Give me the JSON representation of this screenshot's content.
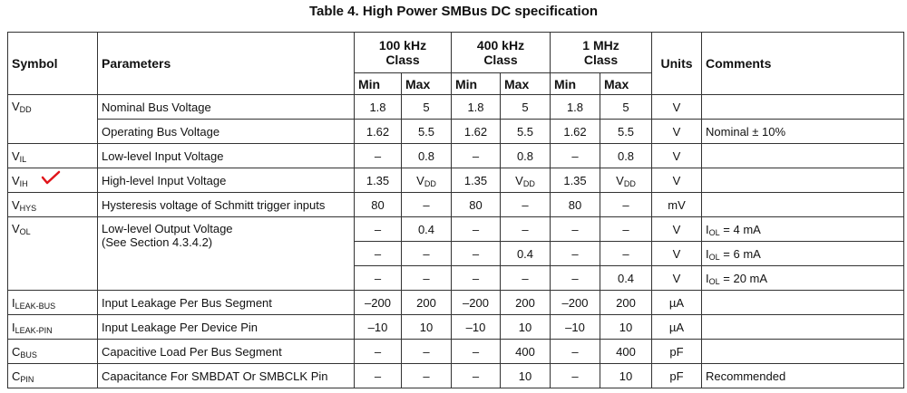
{
  "title": "Table 4. High Power SMBus DC specification",
  "header": {
    "symbol": "Symbol",
    "parameters": "Parameters",
    "classes": [
      [
        "100 kHz",
        "Class"
      ],
      [
        "400 kHz",
        "Class"
      ],
      [
        "1 MHz",
        "Class"
      ]
    ],
    "subheaders": [
      "Min",
      "Max",
      "Min",
      "Max",
      "Min",
      "Max"
    ],
    "units": "Units",
    "comments": "Comments"
  },
  "groups": [
    {
      "symbol": {
        "base": "V",
        "sub": "DD"
      },
      "params": [
        {
          "parameter": [
            "Nominal Bus Voltage"
          ],
          "rows": [
            {
              "values": [
                "1.8",
                "5",
                "1.8",
                "5",
                "1.8",
                "5"
              ],
              "units": "V"
            }
          ]
        },
        {
          "parameter": [
            "Operating Bus Voltage"
          ],
          "rows": [
            {
              "values": [
                "1.62",
                "5.5",
                "1.62",
                "5.5",
                "1.62",
                "5.5"
              ],
              "units": "V",
              "comment": {
                "base": "Nominal ± 10%"
              }
            }
          ]
        }
      ]
    },
    {
      "symbol": {
        "base": "V",
        "sub": "IL"
      },
      "params": [
        {
          "parameter": [
            "Low-level Input Voltage"
          ],
          "rows": [
            {
              "values": [
                "–",
                "0.8",
                "–",
                "0.8",
                "–",
                "0.8"
              ],
              "units": "V"
            }
          ]
        }
      ]
    },
    {
      "symbol": {
        "base": "V",
        "sub": "IH"
      },
      "params": [
        {
          "parameter": [
            "High-level Input Voltage"
          ],
          "rows": [
            {
              "values": [
                "1.35",
                {
                  "base": "V",
                  "sub": "DD"
                },
                "1.35",
                {
                  "base": "V",
                  "sub": "DD"
                },
                "1.35",
                {
                  "base": "V",
                  "sub": "DD"
                }
              ],
              "units": "V"
            }
          ]
        }
      ]
    },
    {
      "symbol": {
        "base": "V",
        "sub": "HYS"
      },
      "params": [
        {
          "parameter": [
            "Hysteresis voltage of Schmitt trigger inputs"
          ],
          "rows": [
            {
              "values": [
                "80",
                "–",
                "80",
                "–",
                "80",
                "–"
              ],
              "units": "mV"
            }
          ]
        }
      ]
    },
    {
      "symbol": {
        "base": "V",
        "sub": "OL"
      },
      "params": [
        {
          "parameter": [
            "Low-level Output Voltage",
            "(See Section 4.3.4.2)"
          ],
          "rows": [
            {
              "values": [
                "–",
                "0.4",
                "–",
                "–",
                "–",
                "–"
              ],
              "units": "V",
              "comment": {
                "base": "I",
                "sub": "OL",
                "rest": " = 4 mA"
              }
            },
            {
              "values": [
                "–",
                "–",
                "–",
                "0.4",
                "–",
                "–"
              ],
              "units": "V",
              "comment": {
                "base": "I",
                "sub": "OL",
                "rest": " = 6 mA"
              }
            },
            {
              "values": [
                "–",
                "–",
                "–",
                "–",
                "–",
                "0.4"
              ],
              "units": "V",
              "comment": {
                "base": "I",
                "sub": "OL",
                "rest": " = 20 mA"
              }
            }
          ]
        }
      ]
    },
    {
      "symbol": {
        "base": "I",
        "sub": "LEAK-BUS"
      },
      "params": [
        {
          "parameter": [
            "Input Leakage Per Bus Segment"
          ],
          "rows": [
            {
              "values": [
                "–200",
                "200",
                "–200",
                "200",
                "–200",
                "200"
              ],
              "units": "µA"
            }
          ]
        }
      ]
    },
    {
      "symbol": {
        "base": "I",
        "sub": "LEAK-PIN"
      },
      "params": [
        {
          "parameter": [
            "Input Leakage Per Device Pin"
          ],
          "rows": [
            {
              "values": [
                "–10",
                "10",
                "–10",
                "10",
                "–10",
                "10"
              ],
              "units": "µA"
            }
          ]
        }
      ]
    },
    {
      "symbol": {
        "base": "C",
        "sub": "BUS"
      },
      "params": [
        {
          "parameter": [
            "Capacitive Load Per Bus Segment"
          ],
          "rows": [
            {
              "values": [
                "–",
                "–",
                "–",
                "400",
                "–",
                "400"
              ],
              "units": "pF"
            }
          ]
        }
      ]
    },
    {
      "symbol": {
        "base": "C",
        "sub": "PIN"
      },
      "params": [
        {
          "parameter": [
            "Capacitance For SMBDAT Or SMBCLK Pin"
          ],
          "rows": [
            {
              "values": [
                "–",
                "–",
                "–",
                "10",
                "–",
                "10"
              ],
              "units": "pF",
              "comment": {
                "base": "Recommended"
              }
            }
          ]
        }
      ]
    }
  ]
}
